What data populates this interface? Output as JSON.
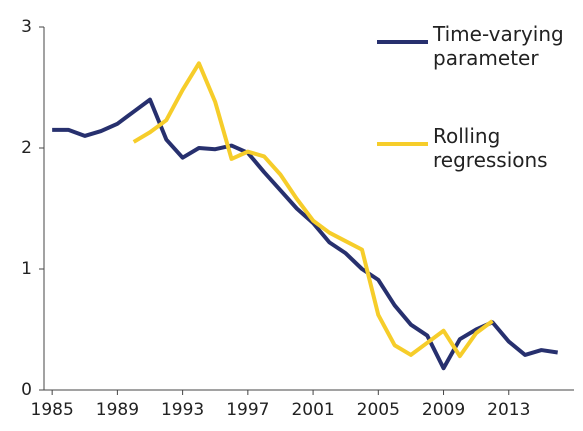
{
  "chart_data": {
    "type": "line",
    "x": [
      1985,
      1986,
      1987,
      1988,
      1989,
      1990,
      1991,
      1992,
      1993,
      1994,
      1995,
      1996,
      1997,
      1998,
      1999,
      2000,
      2001,
      2002,
      2003,
      2004,
      2005,
      2006,
      2007,
      2008,
      2009,
      2010,
      2011,
      2012,
      2013,
      2014,
      2015,
      2016
    ],
    "series": [
      {
        "name": "Time-varying parameter",
        "color": "#27306e",
        "values": [
          2.15,
          2.15,
          2.1,
          2.14,
          2.2,
          2.3,
          2.4,
          2.07,
          1.92,
          2.0,
          1.99,
          2.02,
          1.96,
          1.8,
          1.65,
          1.5,
          1.38,
          1.22,
          1.13,
          1.0,
          0.91,
          0.7,
          0.54,
          0.45,
          0.18,
          0.42,
          0.5,
          0.56,
          0.4,
          0.29,
          0.33,
          0.31
        ]
      },
      {
        "name": "Rolling regressions",
        "color": "#f6cd2a",
        "values": [
          null,
          null,
          null,
          null,
          null,
          2.05,
          2.13,
          2.23,
          2.48,
          2.7,
          2.38,
          1.91,
          1.97,
          1.93,
          1.78,
          1.58,
          1.4,
          1.3,
          1.23,
          1.16,
          0.62,
          0.37,
          0.29,
          0.39,
          0.49,
          0.28,
          0.47,
          0.57,
          null,
          null,
          null,
          null
        ]
      }
    ],
    "xlim": [
      1984.5,
      2017
    ],
    "xticks": [
      1985,
      1989,
      1993,
      1997,
      2001,
      2005,
      2009,
      2013
    ],
    "ylim": [
      0,
      3
    ],
    "yticks": [
      0,
      1,
      2,
      3
    ],
    "grid": false
  }
}
